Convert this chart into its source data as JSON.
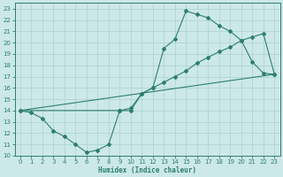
{
  "xlabel": "Humidex (Indice chaleur)",
  "bg_color": "#cce8e8",
  "line_color": "#2d7f6e",
  "grid_color": "#b0d4d4",
  "xlim": [
    -0.5,
    23.5
  ],
  "ylim": [
    10,
    23.5
  ],
  "yticks": [
    10,
    11,
    12,
    13,
    14,
    15,
    16,
    17,
    18,
    19,
    20,
    21,
    22,
    23
  ],
  "xticks": [
    0,
    1,
    2,
    3,
    4,
    5,
    6,
    7,
    8,
    9,
    10,
    11,
    12,
    13,
    14,
    15,
    16,
    17,
    18,
    19,
    20,
    21,
    22,
    23
  ],
  "line1_x": [
    0,
    1,
    2,
    3,
    4,
    5,
    6,
    7,
    8,
    9,
    10,
    11,
    12,
    13,
    14,
    15,
    16,
    17,
    18,
    19,
    20,
    21,
    22,
    23
  ],
  "line1_y": [
    14,
    13.8,
    13.3,
    12.2,
    11.7,
    11.0,
    10.3,
    10.5,
    11.0,
    14.0,
    14.0,
    15.5,
    16.0,
    19.5,
    20.3,
    22.8,
    22.5,
    22.2,
    21.5,
    21.0,
    20.2,
    18.3,
    17.3,
    17.2
  ],
  "line2_x": [
    0,
    23
  ],
  "line2_y": [
    14,
    17.2
  ],
  "line3_x": [
    0,
    9,
    10,
    11,
    12,
    13,
    14,
    15,
    16,
    17,
    18,
    19,
    20,
    21,
    22,
    23
  ],
  "line3_y": [
    14,
    14.0,
    14.2,
    15.5,
    16.0,
    16.5,
    17.0,
    17.5,
    18.2,
    18.7,
    19.2,
    19.6,
    20.2,
    20.5,
    20.8,
    17.2
  ]
}
